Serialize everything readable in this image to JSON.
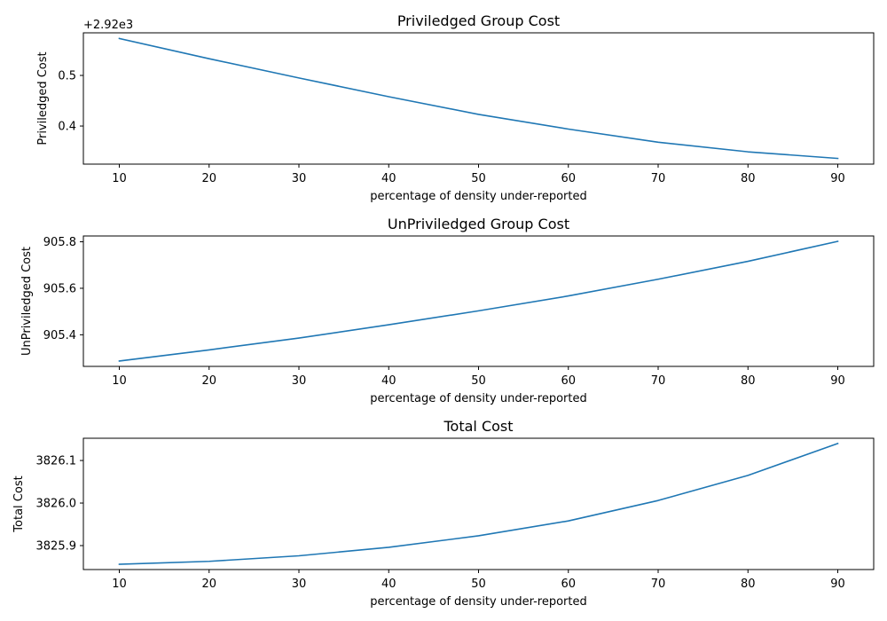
{
  "chart_data": [
    {
      "type": "line",
      "title": "Priviledged Group Cost",
      "xlabel": "percentage of density under-reported",
      "ylabel": "Priviledged Cost",
      "offset_text": "+2.92e3",
      "x": [
        10,
        20,
        30,
        40,
        50,
        60,
        70,
        80,
        90
      ],
      "y": [
        2920.573,
        2920.533,
        2920.495,
        2920.458,
        2920.423,
        2920.394,
        2920.368,
        2920.349,
        2920.336
      ],
      "xticks": [
        10,
        20,
        30,
        40,
        50,
        60,
        70,
        80,
        90
      ],
      "yticks": [
        0.4,
        0.5
      ],
      "ytick_labels": [
        "0.4",
        "0.5"
      ],
      "xlim": [
        6,
        94
      ],
      "ylim": [
        2920.3247,
        2920.5842
      ],
      "grid": false,
      "color": "#1f77b4"
    },
    {
      "type": "line",
      "title": "UnPriviledged Group Cost",
      "xlabel": "percentage of density under-reported",
      "ylabel": "UnPriviledged Cost",
      "x": [
        10,
        20,
        30,
        40,
        50,
        60,
        70,
        80,
        90
      ],
      "y": [
        905.287,
        905.335,
        905.386,
        905.443,
        905.503,
        905.567,
        905.639,
        905.716,
        905.802
      ],
      "xticks": [
        10,
        20,
        30,
        40,
        50,
        60,
        70,
        80,
        90
      ],
      "yticks": [
        905.4,
        905.6,
        905.8
      ],
      "ytick_labels": [
        "905.4",
        "905.6",
        "905.8"
      ],
      "xlim": [
        6,
        94
      ],
      "ylim": [
        905.264,
        905.825
      ],
      "grid": false,
      "color": "#1f77b4"
    },
    {
      "type": "line",
      "title": "Total Cost",
      "xlabel": "percentage of density under-reported",
      "ylabel": "Total Cost",
      "x": [
        10,
        20,
        30,
        40,
        50,
        60,
        70,
        80,
        90
      ],
      "y": [
        3825.856,
        3825.863,
        3825.876,
        3825.896,
        3825.923,
        3825.958,
        3826.006,
        3826.065,
        3826.14
      ],
      "xticks": [
        10,
        20,
        30,
        40,
        50,
        60,
        70,
        80,
        90
      ],
      "yticks": [
        3825.9,
        3826.0,
        3826.1
      ],
      "ytick_labels": [
        "3825.9",
        "3826.0",
        "3826.1"
      ],
      "xlim": [
        6,
        94
      ],
      "ylim": [
        3825.8437,
        3826.1523
      ],
      "grid": false,
      "color": "#1f77b4"
    }
  ]
}
